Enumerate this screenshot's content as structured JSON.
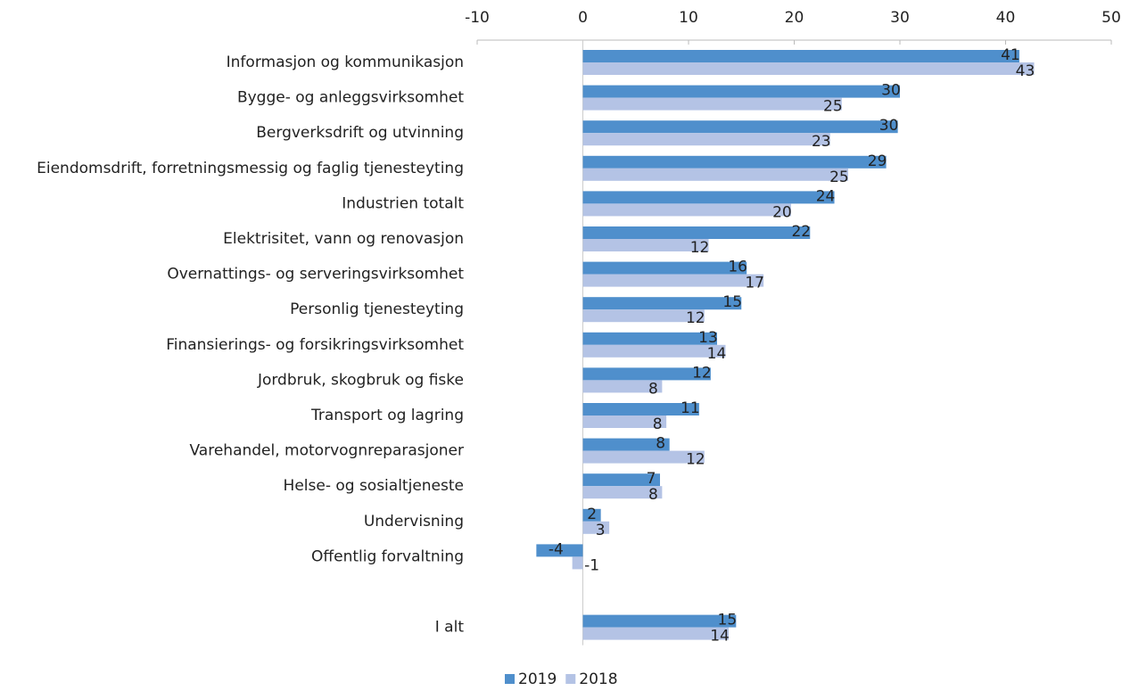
{
  "chart_data": {
    "type": "bar",
    "orientation": "horizontal",
    "categories": [
      "Informasjon og kommunikasjon",
      "Bygge- og anleggsvirksomhet",
      "Bergverksdrift og utvinning",
      "Eiendomsdrift, forretningsmessig og faglig tjenesteyting",
      "Industrien totalt",
      "Elektrisitet, vann og renovasjon",
      "Overnattings- og serveringsvirksomhet",
      "Personlig tjenesteyting",
      "Finansierings- og forsikringsvirksomhet",
      "Jordbruk, skogbruk og fiske",
      "Transport og lagring",
      "Varehandel, motorvognreparasjoner",
      "Helse- og sosialtjeneste",
      "Undervisning",
      "Offentlig forvaltning",
      null,
      "I alt"
    ],
    "series": [
      {
        "name": "2019",
        "color": "#4f8fcc",
        "values": [
          41.3,
          30.0,
          29.8,
          28.7,
          23.8,
          21.5,
          15.5,
          15.0,
          12.7,
          12.1,
          11.0,
          8.2,
          7.3,
          1.7,
          -4.4,
          null,
          14.5
        ],
        "value_labels": [
          "41",
          "30",
          "30",
          "29",
          "24",
          "22",
          "16",
          "15",
          "13",
          "12",
          "11",
          "8",
          "7",
          "2",
          "-4",
          null,
          "15"
        ]
      },
      {
        "name": "2018",
        "color": "#b4c3e5",
        "values": [
          42.7,
          24.5,
          23.4,
          25.1,
          19.7,
          11.9,
          17.1,
          11.5,
          13.5,
          7.5,
          7.9,
          11.5,
          7.5,
          2.5,
          -1.0,
          null,
          13.8
        ],
        "value_labels": [
          "43",
          "25",
          "23",
          "25",
          "20",
          "12",
          "17",
          "12",
          "14",
          "8",
          "8",
          "12",
          "8",
          "3",
          "-1",
          null,
          "14"
        ]
      }
    ],
    "xlim": [
      -10,
      50
    ],
    "xticks": [
      -10,
      0,
      10,
      20,
      30,
      40,
      50
    ],
    "legend": "bottom"
  }
}
